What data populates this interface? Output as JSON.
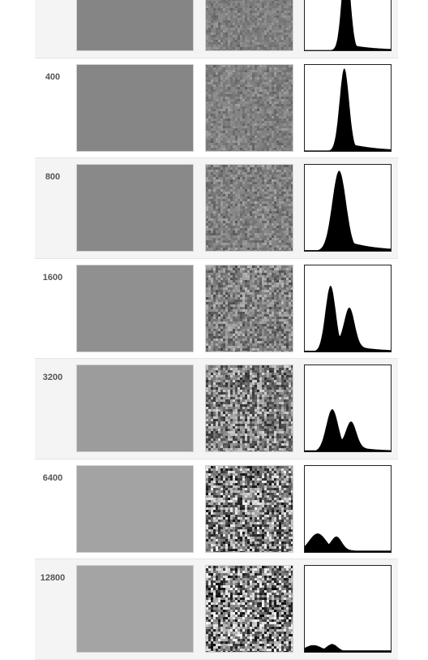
{
  "colors": {
    "row_odd": "#f4f4f4",
    "row_even": "#ffffff",
    "label": "#555555",
    "histogram_fill": "#000000"
  },
  "rows": [
    {
      "iso": "",
      "swatch_color": "#858585",
      "noise_amount": 0.1,
      "histogram": {
        "peak": 0.48,
        "width": 0.05,
        "height": 1.05,
        "tail": 0.2,
        "hump": 0
      }
    },
    {
      "iso": "400",
      "swatch_color": "#868686",
      "noise_amount": 0.14,
      "histogram": {
        "peak": 0.46,
        "width": 0.055,
        "height": 0.98,
        "tail": 0.3,
        "hump": 0
      }
    },
    {
      "iso": "800",
      "swatch_color": "#898989",
      "noise_amount": 0.22,
      "histogram": {
        "peak": 0.4,
        "width": 0.08,
        "height": 0.95,
        "tail": 0.45,
        "hump": 0
      }
    },
    {
      "iso": "1600",
      "swatch_color": "#909090",
      "noise_amount": 0.4,
      "histogram": {
        "peak": 0.3,
        "width": 0.06,
        "height": 0.78,
        "tail": 0.5,
        "hump": 0.45
      }
    },
    {
      "iso": "3200",
      "swatch_color": "#9c9c9c",
      "noise_amount": 0.65,
      "histogram": {
        "peak": 0.32,
        "width": 0.07,
        "height": 0.5,
        "tail": 0.6,
        "hump": 0.3
      }
    },
    {
      "iso": "6400",
      "swatch_color": "#a3a3a3",
      "noise_amount": 0.88,
      "histogram": {
        "peak": 0.15,
        "width": 0.1,
        "height": 0.22,
        "tail": 0.85,
        "hump": 0.15
      }
    },
    {
      "iso": "12800",
      "swatch_color": "#a4a4a4",
      "noise_amount": 0.95,
      "histogram": {
        "peak": 0.1,
        "width": 0.1,
        "height": 0.08,
        "tail": 0.9,
        "hump": 0.08
      }
    }
  ]
}
